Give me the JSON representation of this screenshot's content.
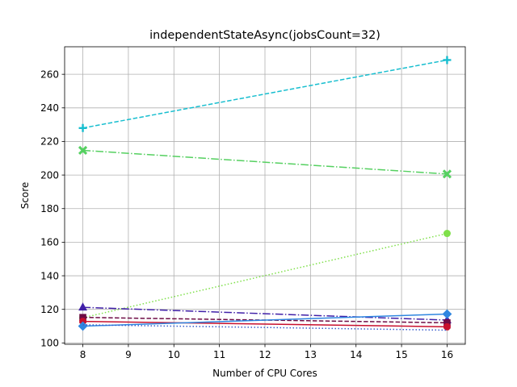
{
  "chart_data": {
    "type": "line",
    "title": "independentStateAsync(jobsCount=32)",
    "xlabel": "Number of CPU Cores",
    "ylabel": "Score",
    "x": [
      8,
      16
    ],
    "xlim": [
      7.6,
      16.4
    ],
    "ylim": [
      99.2,
      276.4
    ],
    "xticks": [
      8,
      9,
      10,
      11,
      12,
      13,
      14,
      15,
      16
    ],
    "yticks": [
      100,
      120,
      140,
      160,
      180,
      200,
      220,
      240,
      260
    ],
    "grid": true,
    "legend": "none",
    "series": [
      {
        "values": [
          228,
          268.5
        ],
        "color": "#17becf",
        "dash": "dashed",
        "marker": "plus"
      },
      {
        "values": [
          214.7,
          200.6
        ],
        "color": "#55d060",
        "dash": "dashdot",
        "marker": "X"
      },
      {
        "values": [
          115.0,
          165.2
        ],
        "color": "#7fe04a",
        "dash": "dotted",
        "marker": "circle"
      },
      {
        "values": [
          121.2,
          113.6
        ],
        "color": "#4020a8",
        "dash": "dashdot",
        "marker": "triangle"
      },
      {
        "values": [
          115.2,
          112.0
        ],
        "color": "#6e0c45",
        "dash": "dashed",
        "marker": "square"
      },
      {
        "values": [
          112.8,
          109.6
        ],
        "color": "#c8102e",
        "dash": "solid",
        "marker": "octagon"
      },
      {
        "values": [
          110.0,
          117.2
        ],
        "color": "#2f86e0",
        "dash": "solid",
        "marker": "diamond"
      },
      {
        "values": [
          110.8,
          107.6
        ],
        "color": "#3a5ccc",
        "dash": "dotted",
        "marker": "none"
      }
    ]
  }
}
